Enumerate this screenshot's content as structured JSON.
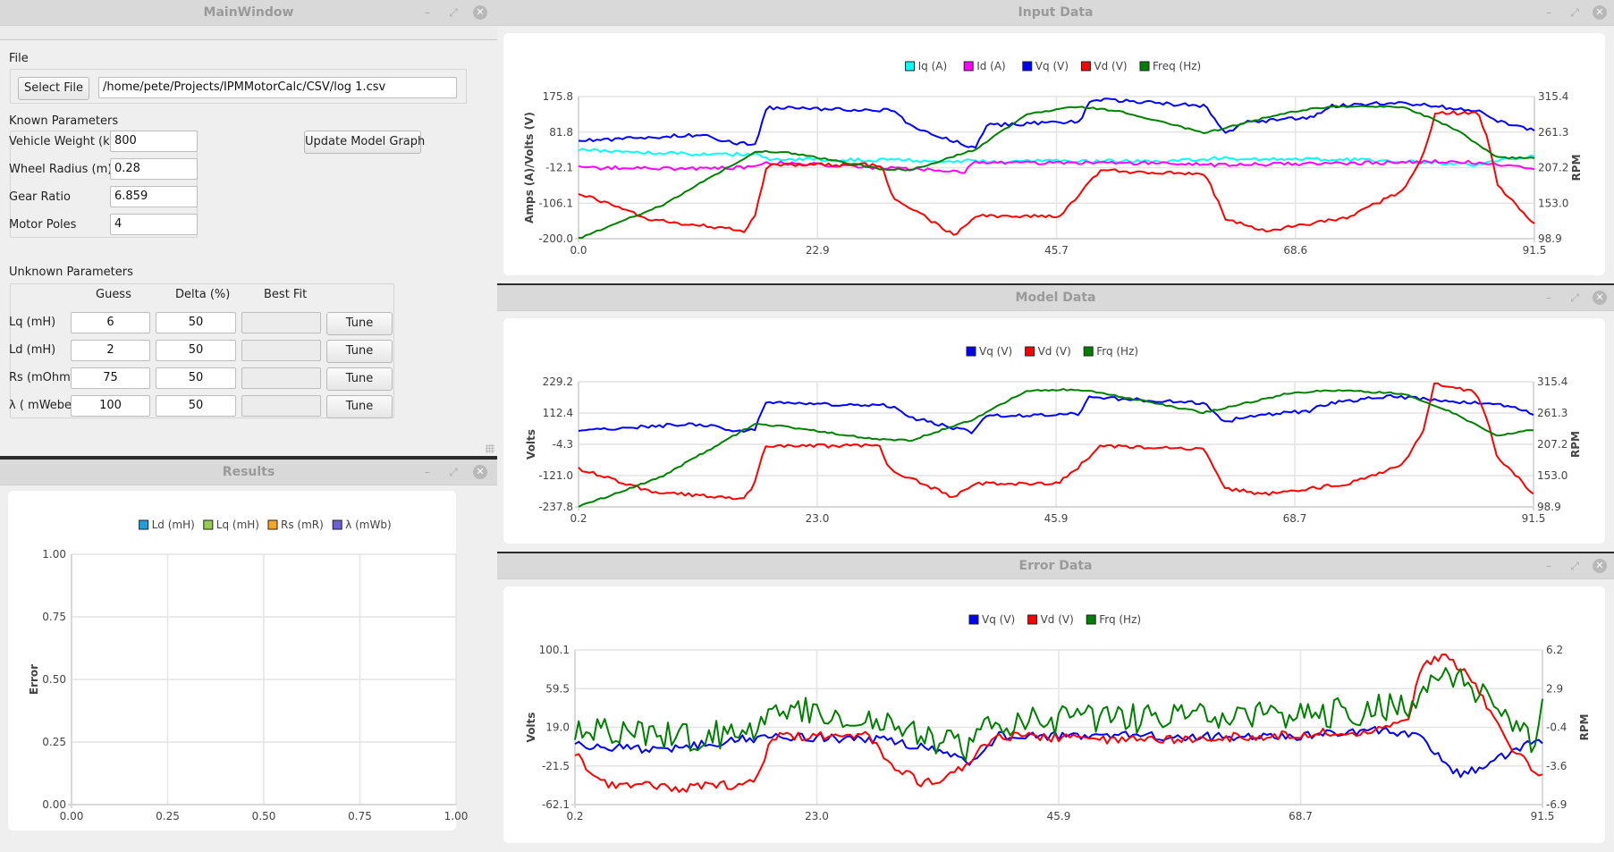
{
  "main_window": {
    "title": "MainWindow",
    "file_group_label": "File",
    "select_file_label": "Select File",
    "file_path": "/home/pete/Projects/IPMMotorCalc/CSV/log 1.csv",
    "known_label": "Known Parameters",
    "known": [
      {
        "label": "Vehicle Weight (kg)",
        "value": "800"
      },
      {
        "label": "Wheel Radius (m)",
        "value": "0.28"
      },
      {
        "label": "Gear Ratio",
        "value": "6.859"
      },
      {
        "label": "Motor Poles",
        "value": "4"
      }
    ],
    "update_button": "Update Model Graph",
    "unknown_label": "Unknown Parameters",
    "unknown_headers": {
      "guess": "Guess",
      "delta": "Delta (%)",
      "best": "Best Fit"
    },
    "unknown": [
      {
        "label": "Lq (mH)",
        "guess": "6",
        "delta": "50",
        "best": "",
        "button": "Tune"
      },
      {
        "label": "Ld (mH)",
        "guess": "2",
        "delta": "50",
        "best": "",
        "button": "Tune"
      },
      {
        "label": "Rs (mOhm)",
        "guess": "75",
        "delta": "50",
        "best": "",
        "button": "Tune"
      },
      {
        "label": "λ ( mWeber)",
        "guess": "100",
        "delta": "50",
        "best": "",
        "button": "Tune"
      }
    ]
  },
  "windows": {
    "results": "Results",
    "input": "Input Data",
    "model": "Model Data",
    "error": "Error Data",
    "minimize_glyph": "–",
    "restore_glyph": "⤢",
    "close_glyph": "✕"
  },
  "chart_data": [
    {
      "id": "results",
      "type": "line",
      "title": "",
      "ylabel": "Error",
      "xlabel": "",
      "xlim": [
        0,
        1
      ],
      "ylim": [
        0,
        1
      ],
      "x_ticks": [
        "0.00",
        "0.25",
        "0.50",
        "0.75",
        "1.00"
      ],
      "y_ticks": [
        "0.00",
        "0.25",
        "0.50",
        "0.75",
        "1.00"
      ],
      "grid": true,
      "legend": "top",
      "series": [
        {
          "name": "Ld (mH)",
          "color": "#209fdf",
          "points": []
        },
        {
          "name": "Lq (mH)",
          "color": "#99ca53",
          "points": []
        },
        {
          "name": "Rs (mR)",
          "color": "#f6a625",
          "points": []
        },
        {
          "name": "λ (mWb)",
          "color": "#6d5fd5",
          "points": []
        }
      ]
    },
    {
      "id": "input",
      "type": "line",
      "ylabel": "Amps (A)/Volts (V)",
      "y2label": "RPM",
      "xlim": [
        0.0,
        91.5
      ],
      "ylim": [
        -200.0,
        175.8
      ],
      "y2lim": [
        98.9,
        315.4
      ],
      "x_ticks": [
        "0.0",
        "22.9",
        "45.7",
        "68.6",
        "91.5"
      ],
      "y_ticks": [
        "-200.0",
        "-106.1",
        "-12.1",
        "81.8",
        "175.8"
      ],
      "y2_ticks": [
        "98.9",
        "153.0",
        "207.2",
        "261.3",
        "315.4"
      ],
      "grid": true,
      "legend": "top",
      "noise": 4,
      "series": [
        {
          "name": "Iq (A)",
          "color": "#00ffff",
          "axis": "y",
          "points": [
            [
              0,
              35
            ],
            [
              10,
              25
            ],
            [
              17,
              22
            ],
            [
              18,
              10
            ],
            [
              40,
              5
            ],
            [
              55,
              5
            ],
            [
              61,
              12
            ],
            [
              75,
              8
            ],
            [
              84,
              -2
            ],
            [
              86,
              -5
            ],
            [
              89,
              10
            ],
            [
              91.5,
              20
            ]
          ]
        },
        {
          "name": "Id (A)",
          "color": "#ff00ff",
          "axis": "y",
          "points": [
            [
              0,
              -12
            ],
            [
              10,
              -15
            ],
            [
              17,
              -12
            ],
            [
              18,
              2
            ],
            [
              37,
              -22
            ],
            [
              38,
              2
            ],
            [
              55,
              0
            ],
            [
              61,
              -5
            ],
            [
              75,
              0
            ],
            [
              84,
              5
            ],
            [
              91.5,
              -15
            ]
          ]
        },
        {
          "name": "Vq (V)",
          "color": "#0000ff",
          "axis": "y",
          "points": [
            [
              0,
              58
            ],
            [
              8,
              70
            ],
            [
              12,
              75
            ],
            [
              15,
              52
            ],
            [
              17,
              52
            ],
            [
              18,
              146
            ],
            [
              30,
              140
            ],
            [
              32,
              95
            ],
            [
              38,
              40
            ],
            [
              39,
              100
            ],
            [
              48,
              110
            ],
            [
              49,
              170
            ],
            [
              60,
              150
            ],
            [
              62,
              80
            ],
            [
              64,
              108
            ],
            [
              70,
              120
            ],
            [
              72,
              150
            ],
            [
              78,
              160
            ],
            [
              86,
              140
            ],
            [
              88,
              112
            ],
            [
              91.5,
              85
            ]
          ]
        },
        {
          "name": "Vd (V)",
          "color": "#ff0000",
          "axis": "y",
          "points": [
            [
              0,
              -80
            ],
            [
              7,
              -150
            ],
            [
              16,
              -180
            ],
            [
              17,
              -130
            ],
            [
              18,
              -5
            ],
            [
              29,
              -5
            ],
            [
              30,
              -90
            ],
            [
              36,
              -190
            ],
            [
              38,
              -140
            ],
            [
              46,
              -140
            ],
            [
              48,
              -80
            ],
            [
              50,
              -20
            ],
            [
              60,
              -30
            ],
            [
              62,
              -150
            ],
            [
              66,
              -180
            ],
            [
              74,
              -140
            ],
            [
              79,
              -70
            ],
            [
              81,
              30
            ],
            [
              82,
              130
            ],
            [
              86,
              135
            ],
            [
              87,
              70
            ],
            [
              88,
              -60
            ],
            [
              91.5,
              -160
            ]
          ]
        },
        {
          "name": "Freq (Hz)",
          "color": "#008000",
          "axis": "y2",
          "points": [
            [
              0,
              99
            ],
            [
              8,
              150
            ],
            [
              17,
              232
            ],
            [
              20,
              230
            ],
            [
              29,
              205
            ],
            [
              32,
              204
            ],
            [
              38,
              235
            ],
            [
              43,
              290
            ],
            [
              48,
              300
            ],
            [
              52,
              292
            ],
            [
              60,
              260
            ],
            [
              68,
              292
            ],
            [
              72,
              300
            ],
            [
              79,
              300
            ],
            [
              84,
              265
            ],
            [
              88,
              222
            ],
            [
              91.5,
              222
            ]
          ]
        }
      ]
    },
    {
      "id": "model",
      "type": "line",
      "ylabel": "Volts",
      "y2label": "RPM",
      "xlim": [
        0.2,
        91.5
      ],
      "ylim": [
        -237.8,
        229.2
      ],
      "y2lim": [
        98.9,
        315.4
      ],
      "x_ticks": [
        "0.2",
        "23.0",
        "45.9",
        "68.7",
        "91.5"
      ],
      "y_ticks": [
        "-237.8",
        "-121.0",
        "-4.3",
        "112.4",
        "229.2"
      ],
      "y2_ticks": [
        "98.9",
        "153.0",
        "207.2",
        "261.3",
        "315.4"
      ],
      "grid": true,
      "legend": "top",
      "noise": 4,
      "series": [
        {
          "name": "Vq (V)",
          "color": "#0000ff",
          "axis": "y",
          "points": [
            [
              0.2,
              50
            ],
            [
              8,
              65
            ],
            [
              12,
              70
            ],
            [
              15,
              48
            ],
            [
              17,
              48
            ],
            [
              18,
              150
            ],
            [
              30,
              140
            ],
            [
              32,
              95
            ],
            [
              38,
              40
            ],
            [
              39,
              100
            ],
            [
              48,
              110
            ],
            [
              49,
              170
            ],
            [
              60,
              150
            ],
            [
              62,
              80
            ],
            [
              64,
              100
            ],
            [
              70,
              120
            ],
            [
              72,
              150
            ],
            [
              78,
              175
            ],
            [
              86,
              150
            ],
            [
              88,
              150
            ],
            [
              91.5,
              110
            ]
          ]
        },
        {
          "name": "Vd (V)",
          "color": "#ff0000",
          "axis": "y",
          "points": [
            [
              0.2,
              -95
            ],
            [
              7,
              -180
            ],
            [
              16,
              -210
            ],
            [
              17,
              -150
            ],
            [
              18,
              -10
            ],
            [
              29,
              -10
            ],
            [
              30,
              -100
            ],
            [
              36,
              -200
            ],
            [
              38,
              -150
            ],
            [
              46,
              -150
            ],
            [
              48,
              -90
            ],
            [
              50,
              -10
            ],
            [
              60,
              -20
            ],
            [
              62,
              -170
            ],
            [
              66,
              -190
            ],
            [
              74,
              -150
            ],
            [
              79,
              -80
            ],
            [
              81,
              50
            ],
            [
              82,
              220
            ],
            [
              86,
              190
            ],
            [
              87,
              100
            ],
            [
              88,
              -50
            ],
            [
              91.5,
              -190
            ]
          ]
        },
        {
          "name": "Frq (Hz)",
          "color": "#008000",
          "axis": "y2",
          "points": [
            [
              0.2,
              99
            ],
            [
              8,
              150
            ],
            [
              17,
              242
            ],
            [
              20,
              238
            ],
            [
              29,
              215
            ],
            [
              32,
              214
            ],
            [
              38,
              250
            ],
            [
              43,
              300
            ],
            [
              48,
              302
            ],
            [
              52,
              290
            ],
            [
              60,
              262
            ],
            [
              68,
              295
            ],
            [
              72,
              301
            ],
            [
              79,
              295
            ],
            [
              84,
              260
            ],
            [
              88,
              222
            ],
            [
              91.5,
              232
            ]
          ]
        }
      ]
    },
    {
      "id": "error",
      "type": "line",
      "ylabel": "Volts",
      "y2label": "RPM",
      "xlim": [
        0.2,
        91.5
      ],
      "ylim": [
        -62.1,
        100.1
      ],
      "y2lim": [
        -6.9,
        6.2
      ],
      "x_ticks": [
        "0.2",
        "23.0",
        "45.9",
        "68.7",
        "91.5"
      ],
      "y_ticks": [
        "-62.1",
        "-21.5",
        "19.0",
        "59.5",
        "100.1"
      ],
      "y2_ticks": [
        "-6.9",
        "-3.6",
        "-0.4",
        "2.9",
        "6.2"
      ],
      "grid": true,
      "legend": "top",
      "noise": 6,
      "series": [
        {
          "name": "Vq (V)",
          "color": "#0000ff",
          "axis": "y",
          "points": [
            [
              0.2,
              0
            ],
            [
              8,
              -5
            ],
            [
              15,
              5
            ],
            [
              20,
              10
            ],
            [
              30,
              5
            ],
            [
              36,
              -10
            ],
            [
              38,
              -20
            ],
            [
              40,
              10
            ],
            [
              55,
              10
            ],
            [
              65,
              8
            ],
            [
              76,
              15
            ],
            [
              80,
              10
            ],
            [
              83,
              -30
            ],
            [
              86,
              -25
            ],
            [
              88,
              -10
            ],
            [
              90,
              0
            ],
            [
              91.5,
              5
            ]
          ]
        },
        {
          "name": "Vd (V)",
          "color": "#ff0000",
          "axis": "y",
          "points": [
            [
              0.2,
              -10
            ],
            [
              3,
              -40
            ],
            [
              10,
              -45
            ],
            [
              17,
              -40
            ],
            [
              19,
              10
            ],
            [
              28,
              10
            ],
            [
              30,
              -20
            ],
            [
              33,
              -40
            ],
            [
              36,
              -30
            ],
            [
              38,
              -10
            ],
            [
              40,
              10
            ],
            [
              55,
              5
            ],
            [
              65,
              10
            ],
            [
              75,
              15
            ],
            [
              79,
              30
            ],
            [
              80,
              80
            ],
            [
              82,
              95
            ],
            [
              84,
              80
            ],
            [
              87,
              30
            ],
            [
              89,
              -10
            ],
            [
              91.5,
              -30
            ]
          ]
        },
        {
          "name": "Frq (Hz)",
          "color": "#008000",
          "axis": "y2",
          "points": [
            [
              0.2,
              -0.8
            ],
            [
              10,
              -1.2
            ],
            [
              17,
              -0.8
            ],
            [
              19,
              1.5
            ],
            [
              29,
              0
            ],
            [
              33,
              -1
            ],
            [
              37,
              -2
            ],
            [
              40,
              0
            ],
            [
              55,
              0.5
            ],
            [
              65,
              0.5
            ],
            [
              75,
              1
            ],
            [
              80,
              2
            ],
            [
              82,
              4
            ],
            [
              85,
              3
            ],
            [
              87,
              1
            ],
            [
              89,
              -0.5
            ],
            [
              91,
              -1.5
            ],
            [
              91.5,
              1.5
            ]
          ]
        }
      ]
    }
  ]
}
